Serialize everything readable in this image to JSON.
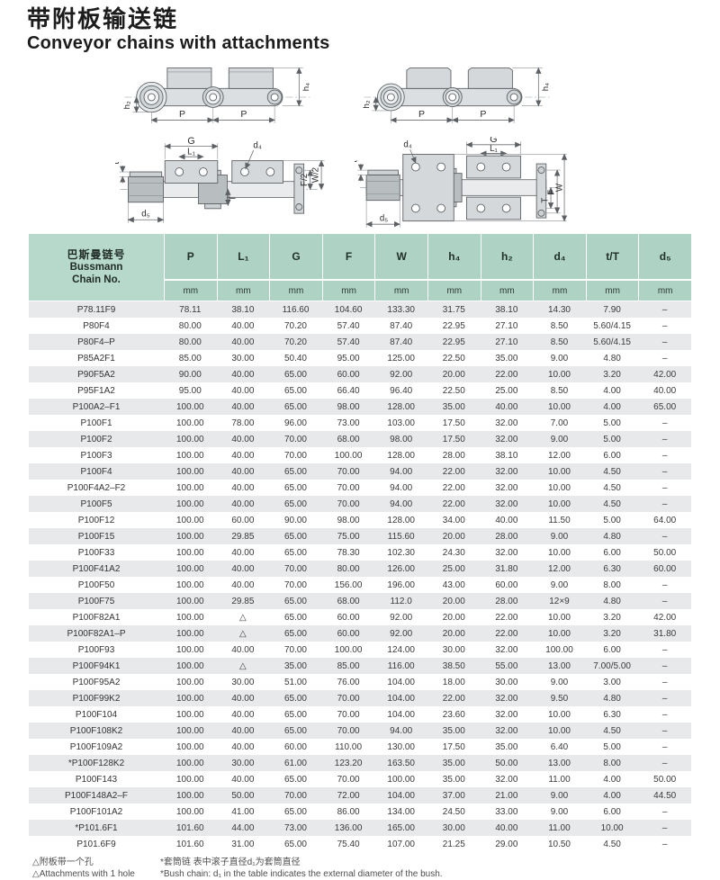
{
  "page": {
    "title_zh": "带附板输送链",
    "title_en": "Conveyor chains with attachments"
  },
  "diagram_labels": {
    "h2": "h₂",
    "h4": "h₄",
    "p": "P",
    "g": "G",
    "l1": "L₁",
    "d4": "d₄",
    "d5": "d₅",
    "t": "t",
    "T": "T",
    "f2": "F/2",
    "w2": "W/2",
    "f": "F",
    "w": "W"
  },
  "table": {
    "header": {
      "col0_zh": "巴斯曼链号",
      "col0_en1": "Bussmann",
      "col0_en2": "Chain No.",
      "columns": [
        "P",
        "L₁",
        "G",
        "F",
        "W",
        "h₄",
        "h₂",
        "d₄",
        "t/T",
        "d₅"
      ],
      "unit": "mm"
    },
    "rows": [
      {
        "chain": "P78.11F9",
        "v": [
          "78.11",
          "38.10",
          "116.60",
          "104.60",
          "133.30",
          "31.75",
          "38.10",
          "14.30",
          "7.90",
          "–"
        ]
      },
      {
        "chain": "P80F4",
        "v": [
          "80.00",
          "40.00",
          "70.20",
          "57.40",
          "87.40",
          "22.95",
          "27.10",
          "8.50",
          "5.60/4.15",
          "–"
        ]
      },
      {
        "chain": "P80F4–P",
        "v": [
          "80.00",
          "40.00",
          "70.20",
          "57.40",
          "87.40",
          "22.95",
          "27.10",
          "8.50",
          "5.60/4.15",
          "–"
        ]
      },
      {
        "chain": "P85A2F1",
        "v": [
          "85.00",
          "30.00",
          "50.40",
          "95.00",
          "125.00",
          "22.50",
          "35.00",
          "9.00",
          "4.80",
          "–"
        ]
      },
      {
        "chain": "P90F5A2",
        "v": [
          "90.00",
          "40.00",
          "65.00",
          "60.00",
          "92.00",
          "20.00",
          "22.00",
          "10.00",
          "3.20",
          "42.00"
        ]
      },
      {
        "chain": "P95F1A2",
        "v": [
          "95.00",
          "40.00",
          "65.00",
          "66.40",
          "96.40",
          "22.50",
          "25.00",
          "8.50",
          "4.00",
          "40.00"
        ]
      },
      {
        "chain": "P100A2–F1",
        "v": [
          "100.00",
          "40.00",
          "65.00",
          "98.00",
          "128.00",
          "35.00",
          "40.00",
          "10.00",
          "4.00",
          "65.00"
        ]
      },
      {
        "chain": "P100F1",
        "v": [
          "100.00",
          "78.00",
          "96.00",
          "73.00",
          "103.00",
          "17.50",
          "32.00",
          "7.00",
          "5.00",
          "–"
        ]
      },
      {
        "chain": "P100F2",
        "v": [
          "100.00",
          "40.00",
          "70.00",
          "68.00",
          "98.00",
          "17.50",
          "32.00",
          "9.00",
          "5.00",
          "–"
        ]
      },
      {
        "chain": "P100F3",
        "v": [
          "100.00",
          "40.00",
          "70.00",
          "100.00",
          "128.00",
          "28.00",
          "38.10",
          "12.00",
          "6.00",
          "–"
        ]
      },
      {
        "chain": "P100F4",
        "v": [
          "100.00",
          "40.00",
          "65.00",
          "70.00",
          "94.00",
          "22.00",
          "32.00",
          "10.00",
          "4.50",
          "–"
        ]
      },
      {
        "chain": "P100F4A2–F2",
        "v": [
          "100.00",
          "40.00",
          "65.00",
          "70.00",
          "94.00",
          "22.00",
          "32.00",
          "10.00",
          "4.50",
          "–"
        ]
      },
      {
        "chain": "P100F5",
        "v": [
          "100.00",
          "40.00",
          "65.00",
          "70.00",
          "94.00",
          "22.00",
          "32.00",
          "10.00",
          "4.50",
          "–"
        ]
      },
      {
        "chain": "P100F12",
        "v": [
          "100.00",
          "60.00",
          "90.00",
          "98.00",
          "128.00",
          "34.00",
          "40.00",
          "11.50",
          "5.00",
          "64.00"
        ]
      },
      {
        "chain": "P100F15",
        "v": [
          "100.00",
          "29.85",
          "65.00",
          "75.00",
          "115.60",
          "20.00",
          "28.00",
          "9.00",
          "4.80",
          "–"
        ]
      },
      {
        "chain": "P100F33",
        "v": [
          "100.00",
          "40.00",
          "65.00",
          "78.30",
          "102.30",
          "24.30",
          "32.00",
          "10.00",
          "6.00",
          "50.00"
        ]
      },
      {
        "chain": "P100F41A2",
        "v": [
          "100.00",
          "40.00",
          "70.00",
          "80.00",
          "126.00",
          "25.00",
          "31.80",
          "12.00",
          "6.30",
          "60.00"
        ]
      },
      {
        "chain": "P100F50",
        "v": [
          "100.00",
          "40.00",
          "70.00",
          "156.00",
          "196.00",
          "43.00",
          "60.00",
          "9.00",
          "8.00",
          "–"
        ]
      },
      {
        "chain": "P100F75",
        "v": [
          "100.00",
          "29.85",
          "65.00",
          "68.00",
          "112.0",
          "20.00",
          "28.00",
          "12×9",
          "4.80",
          "–"
        ]
      },
      {
        "chain": "P100F82A1",
        "v": [
          "100.00",
          "△",
          "65.00",
          "60.00",
          "92.00",
          "20.00",
          "22.00",
          "10.00",
          "3.20",
          "42.00"
        ]
      },
      {
        "chain": "P100F82A1–P",
        "v": [
          "100.00",
          "△",
          "65.00",
          "60.00",
          "92.00",
          "20.00",
          "22.00",
          "10.00",
          "3.20",
          "31.80"
        ]
      },
      {
        "chain": "P100F93",
        "v": [
          "100.00",
          "40.00",
          "70.00",
          "100.00",
          "124.00",
          "30.00",
          "32.00",
          "100.00",
          "6.00",
          "–"
        ]
      },
      {
        "chain": "P100F94K1",
        "v": [
          "100.00",
          "△",
          "35.00",
          "85.00",
          "116.00",
          "38.50",
          "55.00",
          "13.00",
          "7.00/5.00",
          "–"
        ]
      },
      {
        "chain": "P100F95A2",
        "v": [
          "100.00",
          "30.00",
          "51.00",
          "76.00",
          "104.00",
          "18.00",
          "30.00",
          "9.00",
          "3.00",
          "–"
        ]
      },
      {
        "chain": "P100F99K2",
        "v": [
          "100.00",
          "40.00",
          "65.00",
          "70.00",
          "104.00",
          "22.00",
          "32.00",
          "9.50",
          "4.80",
          "–"
        ]
      },
      {
        "chain": "P100F104",
        "v": [
          "100.00",
          "40.00",
          "65.00",
          "70.00",
          "104.00",
          "23.60",
          "32.00",
          "10.00",
          "6.30",
          "–"
        ]
      },
      {
        "chain": "P100F108K2",
        "v": [
          "100.00",
          "40.00",
          "65.00",
          "70.00",
          "94.00",
          "35.00",
          "32.00",
          "10.00",
          "4.50",
          "–"
        ]
      },
      {
        "chain": "P100F109A2",
        "v": [
          "100.00",
          "40.00",
          "60.00",
          "110.00",
          "130.00",
          "17.50",
          "35.00",
          "6.40",
          "5.00",
          "–"
        ]
      },
      {
        "chain": "*P100F128K2",
        "v": [
          "100.00",
          "30.00",
          "61.00",
          "123.20",
          "163.50",
          "35.00",
          "50.00",
          "13.00",
          "8.00",
          "–"
        ]
      },
      {
        "chain": "P100F143",
        "v": [
          "100.00",
          "40.00",
          "65.00",
          "70.00",
          "100.00",
          "35.00",
          "32.00",
          "11.00",
          "4.00",
          "50.00"
        ]
      },
      {
        "chain": "P100F148A2–F",
        "v": [
          "100.00",
          "50.00",
          "70.00",
          "72.00",
          "104.00",
          "37.00",
          "21.00",
          "9.00",
          "4.00",
          "44.50"
        ]
      },
      {
        "chain": "P100F101A2",
        "v": [
          "100.00",
          "41.00",
          "65.00",
          "86.00",
          "134.00",
          "24.50",
          "33.00",
          "9.00",
          "6.00",
          "–"
        ]
      },
      {
        "chain": "*P101.6F1",
        "v": [
          "101.60",
          "44.00",
          "73.00",
          "136.00",
          "165.00",
          "30.00",
          "40.00",
          "11.00",
          "10.00",
          "–"
        ]
      },
      {
        "chain": "P101.6F9",
        "v": [
          "101.60",
          "31.00",
          "65.00",
          "75.40",
          "107.00",
          "21.25",
          "29.00",
          "10.50",
          "4.50",
          "–"
        ]
      }
    ]
  },
  "footnotes": {
    "left_zh": "△附板带一个孔",
    "left_en": "△Attachments with 1 hole",
    "right_zh": "*套筒链  表中滚子直径d₁为套筒直径",
    "right_en": "*Bush chain: d₁ in the table indicates the external diameter of the bush."
  },
  "colors": {
    "header_green": "#aed2c4",
    "header_green_light": "#b7d9cb",
    "row_stripe": "#e7e9eb",
    "diagram_fill": "#d4d8da"
  }
}
